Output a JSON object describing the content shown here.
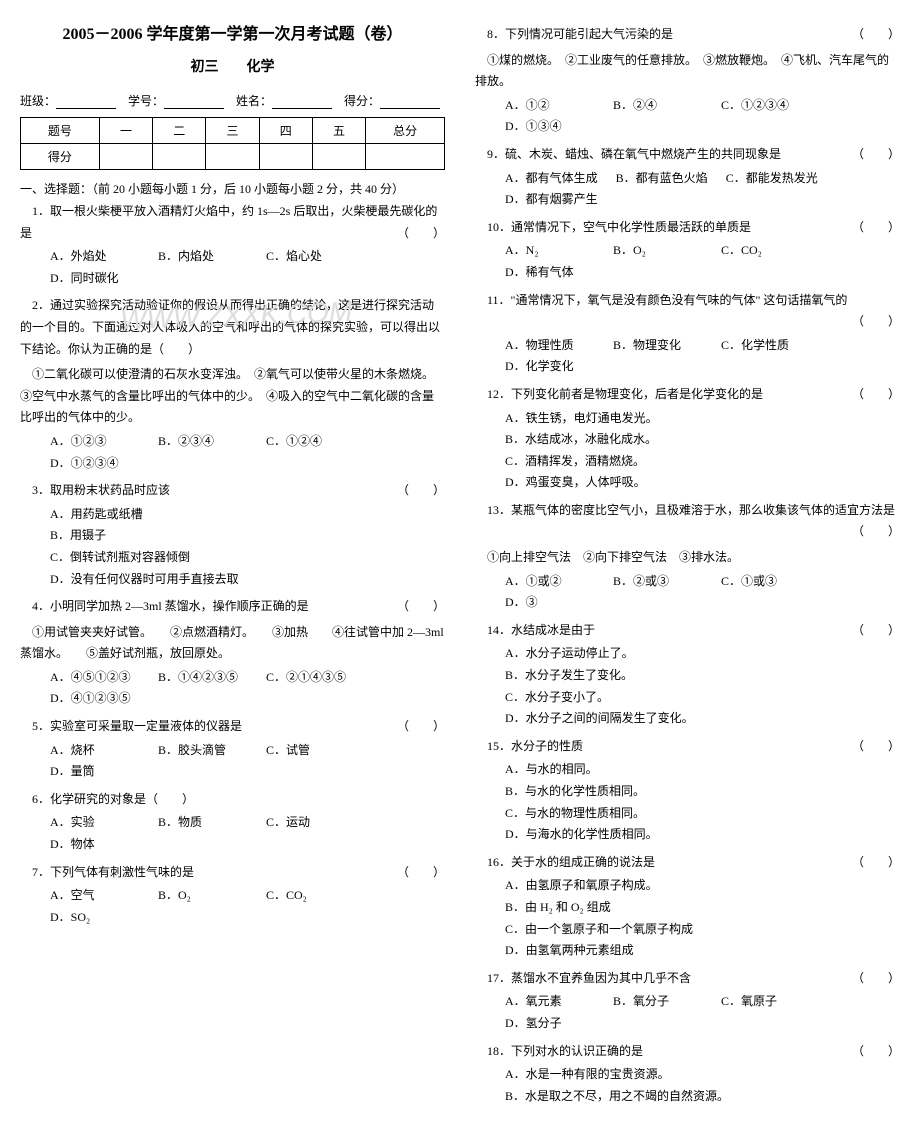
{
  "title": "2005－2006 学年度第一学第一次月考试题（卷）",
  "subtitle_line": "初三　　化学",
  "header": {
    "class_label": "班级：",
    "id_label": "学号：",
    "name_label": "姓名：",
    "score_label": "得分："
  },
  "score_table": {
    "row1": [
      "题号",
      "一",
      "二",
      "三",
      "四",
      "五",
      "总分"
    ],
    "row2_label": "得分"
  },
  "section1": "一、选择题：（前 20 小题每小题 1 分，后 10 小题每小题 2 分，共 40 分）",
  "q1": {
    "stem": "1．取一根火柴梗平放入酒精灯火焰中，约 1s—2s 后取出，火柴梗最先碳化的是",
    "paren": "（　　）",
    "opts": [
      "A．外焰处",
      "B．内焰处",
      "C．焰心处",
      "D．同时碳化"
    ]
  },
  "q2": {
    "stem": "2．通过实验探究活动验证你的假设从而得出正确的结论，这是进行探究活动的一个目的。下面通过对人体吸入的空气和呼出的气体的探究实验，可以得出以下结论。你认为正确的是（　　）",
    "lines": "①二氧化碳可以使澄清的石灰水变浑浊。　②氧气可以使带火星的木条燃烧。　③空气中水蒸气的含量比呼出的气体中的少。　④吸入的空气中二氧化碳的含量比呼出的气体中的少。",
    "opts": [
      "A．①②③",
      "B．②③④",
      "C．①②④",
      "D．①②③④"
    ]
  },
  "q3": {
    "stem": "3．取用粉末状药品时应该",
    "paren": "（　　）",
    "opts": [
      "A．用药匙或纸槽",
      "B．用镊子",
      "C．倒转试剂瓶对容器倾倒",
      "D．没有任何仪器时可用手直接去取"
    ]
  },
  "q4": {
    "stem": "4．小明同学加热 2—3ml 蒸馏水，操作顺序正确的是",
    "paren": "（　　）",
    "lines": "①用试管夹夹好试管。　　②点燃酒精灯。　　③加热　　④往试管中加 2—3ml 蒸馏水。　　⑤盖好试剂瓶，放回原处。",
    "opts": [
      "A．④⑤①②③",
      "B．①④②③⑤",
      "C．②①④③⑤",
      "D．④①②③⑤"
    ]
  },
  "q5": {
    "stem": "5．实验室可采量取一定量液体的仪器是",
    "paren": "（　　）",
    "opts": [
      "A．烧杯",
      "B．胶头滴管",
      "C．试管",
      "D．量筒"
    ]
  },
  "q6": {
    "stem": "6．化学研究的对象是（　　）",
    "opts": [
      "A．实验",
      "B．物质",
      "C．运动",
      "D．物体"
    ]
  },
  "q7": {
    "stem": "7．下列气体有刺激性气味的是",
    "paren": "（　　）",
    "opts": [
      "A．空气",
      "B．O₂",
      "C．CO₂",
      "D．SO₂"
    ]
  },
  "q8": {
    "stem": "8．下列情况可能引起大气污染的是",
    "paren": "（　　）",
    "lines": "①煤的燃烧。　②工业废气的任意排放。　③燃放鞭炮。　④飞机、汽车尾气的排放。",
    "opts": [
      "A．①②",
      "B．②④",
      "C．①②③④",
      "D．①③④"
    ]
  },
  "q9": {
    "stem": "9．硫、木炭、蜡烛、磷在氧气中燃烧产生的共同现象是",
    "paren": "（　　）",
    "opts": [
      "A．都有气体生成",
      "B．都有蓝色火焰",
      "C．都能发热发光",
      "D．都有烟雾产生"
    ]
  },
  "q10": {
    "stem": "10．通常情况下，空气中化学性质最活跃的单质是",
    "paren": "（　　）",
    "opts": [
      "A．N₂",
      "B．O₂",
      "C．CO₂",
      "D．稀有气体"
    ]
  },
  "q11": {
    "stem": "11．\"通常情况下，氧气是没有颜色没有气味的气体\" 这句话描氧气的",
    "paren": "（　　）",
    "opts": [
      "A．物理性质",
      "B．物理变化",
      "C．化学性质",
      "D．化学变化"
    ]
  },
  "q12": {
    "stem": "12．下列变化前者是物理变化，后者是化学变化的是",
    "paren": "（　　）",
    "opts": [
      "A．铁生锈，电灯通电发光。",
      "B．水结成冰，冰融化成水。",
      "C．酒精挥发，酒精燃烧。",
      "D．鸡蛋变臭，人体呼吸。"
    ]
  },
  "q13": {
    "stem": "13．某瓶气体的密度比空气小，且极难溶于水，那么收集该气体的适宜方法是",
    "paren": "（　　）",
    "lines": "①向上排空气法　②向下排空气法　③排水法。",
    "opts": [
      "A．①或②",
      "B．②或③",
      "C．①或③",
      "D．③"
    ]
  },
  "q14": {
    "stem": "14．水结成冰是由于",
    "paren": "（　　）",
    "opts": [
      "A．水分子运动停止了。",
      "B．水分子发生了变化。",
      "C．水分子变小了。",
      "D．水分子之间的间隔发生了变化。"
    ]
  },
  "q15": {
    "stem": "15．水分子的性质",
    "paren": "（　　）",
    "opts": [
      "A．与水的相同。",
      "B．与水的化学性质相同。",
      "C．与水的物理性质相同。",
      "D．与海水的化学性质相同。"
    ]
  },
  "q16": {
    "stem": "16．关于水的组成正确的说法是",
    "paren": "（　　）",
    "opts": [
      "A．由氢原子和氧原子构成。",
      "B．由 H₂ 和 O₂ 组成",
      "C．由一个氢原子和一个氧原子构成",
      "D．由氢氧两种元素组成"
    ]
  },
  "q17": {
    "stem": "17．蒸馏水不宜养鱼因为其中几乎不含",
    "paren": "（　　）",
    "opts": [
      "A．氧元素",
      "B．氧分子",
      "C．氧原子",
      "D．氢分子"
    ]
  },
  "q18": {
    "stem": "18．下列对水的认识正确的是",
    "paren": "（　　）",
    "opts": [
      "A．水是一种有限的宝贵资源。",
      "B．水是取之不尽，用之不竭的自然资源。"
    ]
  },
  "watermark": "WWW.ZXXK.COM"
}
